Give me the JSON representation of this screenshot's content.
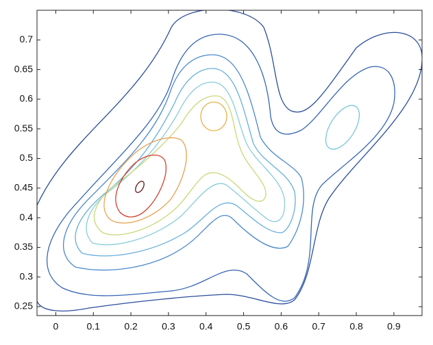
{
  "chart_data": {
    "type": "contour",
    "xlim": [
      -0.05,
      0.975
    ],
    "ylim": [
      0.235,
      0.75
    ],
    "xticks": [
      0,
      0.1,
      0.2,
      0.3,
      0.4,
      0.5,
      0.6,
      0.7,
      0.8,
      0.9
    ],
    "yticks": [
      0.25,
      0.3,
      0.35,
      0.4,
      0.45,
      0.5,
      0.55,
      0.6,
      0.65,
      0.7
    ]
  }
}
